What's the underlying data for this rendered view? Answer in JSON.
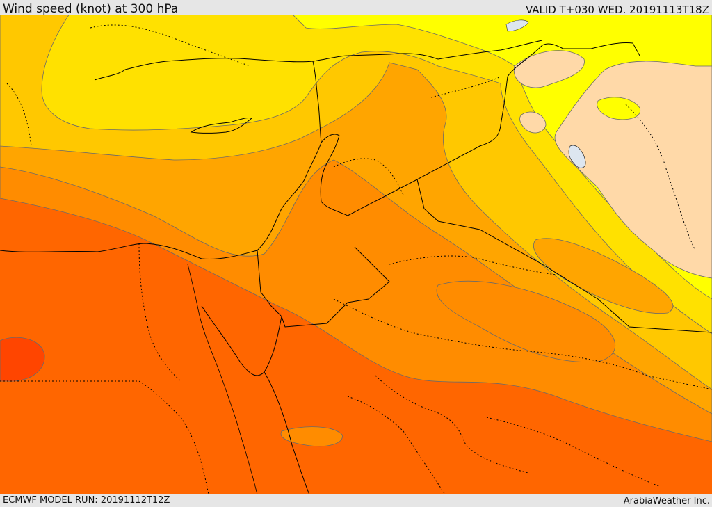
{
  "header": {
    "title": "Wind speed (knot) at 300 hPa",
    "valid": "VALID T+030 WED. 20191113T18Z"
  },
  "footer": {
    "model_run": "ECMWF MODEL RUN: 20191112T12Z",
    "credit": "ArabiaWeather Inc."
  },
  "map": {
    "field": "wind speed",
    "level": "300 hPa",
    "units": "knot",
    "shading_colors": [
      "#ffd9a8",
      "#ffff00",
      "#ffe100",
      "#ffc800",
      "#ffa500",
      "#ff8c00",
      "#ff6600",
      "#ff4500"
    ],
    "lake_color": "#dde6f0",
    "contour_color": "#6a6a6a",
    "border_color": "#000000"
  }
}
